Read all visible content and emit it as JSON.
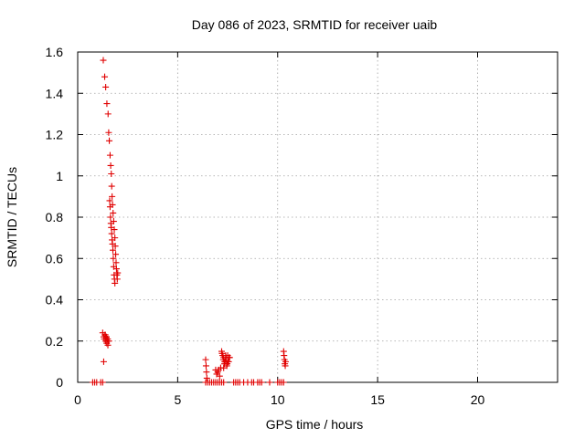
{
  "chart_data": {
    "type": "scatter",
    "title": "Day 086 of 2023, SRMTID for receiver uaib",
    "xlabel": "GPS time / hours",
    "ylabel": "SRMTID / TECUs",
    "xlim": [
      0,
      24
    ],
    "ylim": [
      0,
      1.6
    ],
    "xticks": [
      0,
      5,
      10,
      15,
      20
    ],
    "xtick_labels": [
      "0",
      "5",
      "10",
      "15",
      "20"
    ],
    "yticks": [
      0,
      0.2,
      0.4,
      0.6,
      0.8,
      1,
      1.2,
      1.4,
      1.6
    ],
    "ytick_labels": [
      "0",
      "0.2",
      "0.4",
      "0.6",
      "0.8",
      "1",
      "1.2",
      "1.4",
      "1.6"
    ],
    "grid": true,
    "marker": "+",
    "color": "#e00000",
    "series": [
      {
        "name": "SRMTID",
        "x": [
          0.75,
          0.85,
          0.95,
          1.15,
          1.25,
          1.3,
          1.25,
          1.3,
          1.33,
          1.36,
          1.39,
          1.42,
          1.45,
          1.48,
          1.51,
          1.54,
          1.38,
          1.44,
          1.5,
          1.56,
          1.28,
          1.35,
          1.4,
          1.46,
          1.52,
          1.55,
          1.58,
          1.62,
          1.65,
          1.68,
          1.7,
          1.72,
          1.74,
          1.77,
          1.8,
          1.83,
          1.86,
          1.88,
          1.9,
          1.92,
          1.94,
          1.96,
          1.98,
          2.0,
          1.6,
          1.62,
          1.64,
          1.66,
          1.68,
          1.7,
          1.72,
          1.74,
          1.76,
          1.78,
          1.8,
          1.82,
          1.84,
          1.86,
          6.4,
          6.5,
          6.6,
          6.7,
          6.8,
          6.9,
          7.0,
          7.1,
          7.2,
          7.3,
          6.4,
          6.42,
          6.44,
          6.46,
          6.9,
          6.95,
          7.0,
          7.05,
          7.1,
          7.15,
          7.2,
          7.25,
          7.3,
          7.35,
          7.4,
          7.45,
          7.5,
          7.55,
          7.6,
          7.22,
          7.28,
          7.34,
          7.4,
          7.46,
          7.52,
          7.58,
          7.3,
          7.36,
          7.42,
          7.48,
          7.8,
          7.9,
          8.0,
          8.1,
          8.3,
          8.5,
          8.7,
          8.8,
          9.0,
          9.1,
          9.2,
          9.6,
          10.0,
          10.1,
          10.2,
          10.3,
          10.3,
          10.32,
          10.34,
          10.36,
          10.38,
          10.4
        ],
        "y": [
          0,
          0,
          0,
          0,
          0,
          0.1,
          0.24,
          0.22,
          0.21,
          0.23,
          0.2,
          0.22,
          0.19,
          0.21,
          0.18,
          0.2,
          0.23,
          0.22,
          0.21,
          0.2,
          1.56,
          1.48,
          1.43,
          1.35,
          1.3,
          1.21,
          1.17,
          1.1,
          1.05,
          1.01,
          0.95,
          0.9,
          0.86,
          0.82,
          0.78,
          0.74,
          0.7,
          0.66,
          0.62,
          0.58,
          0.55,
          0.52,
          0.5,
          0.53,
          0.88,
          0.85,
          0.8,
          0.77,
          0.75,
          0.72,
          0.69,
          0.67,
          0.64,
          0.6,
          0.56,
          0.52,
          0.5,
          0.48,
          0,
          0,
          0,
          0,
          0,
          0,
          0,
          0,
          0,
          0,
          0.11,
          0.08,
          0.05,
          0.02,
          0.06,
          0.04,
          0.05,
          0.06,
          0.03,
          0.07,
          0.15,
          0.13,
          0.12,
          0.1,
          0.11,
          0.09,
          0.13,
          0.1,
          0.12,
          0.14,
          0.11,
          0.09,
          0.13,
          0.08,
          0.1,
          0.12,
          0.07,
          0.1,
          0.12,
          0.09,
          0,
          0,
          0,
          0,
          0,
          0,
          0,
          0,
          0,
          0,
          0,
          0,
          0,
          0,
          0,
          0,
          0.15,
          0.13,
          0.11,
          0.09,
          0.08,
          0.1
        ]
      }
    ]
  }
}
